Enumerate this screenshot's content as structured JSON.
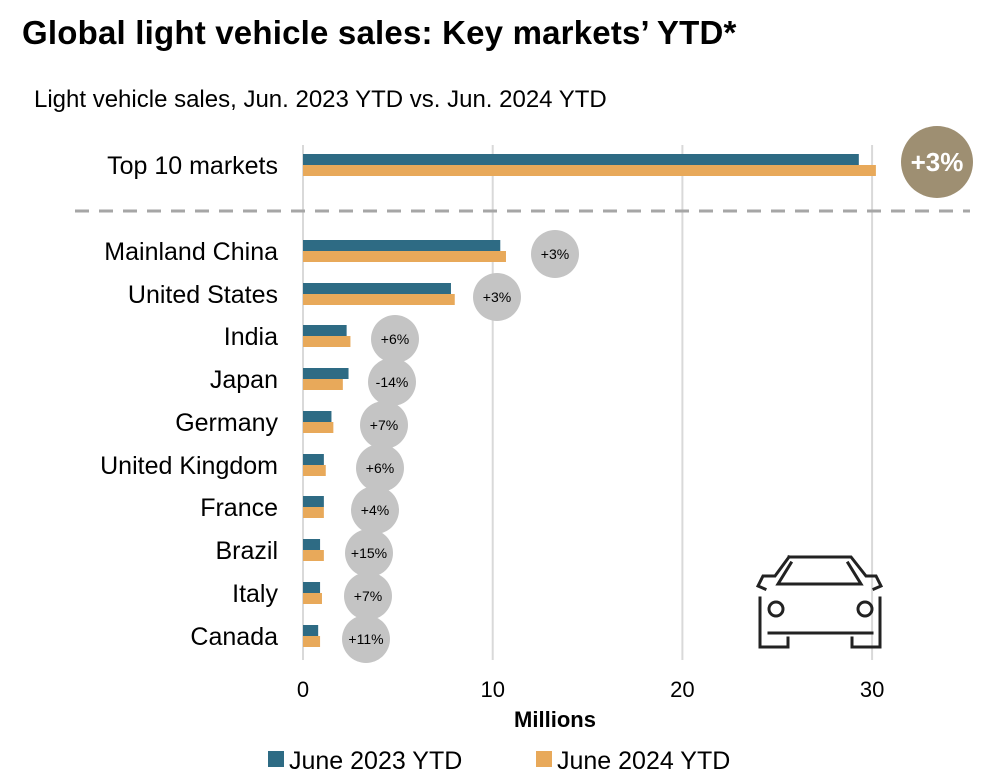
{
  "title": "Global light vehicle sales: Key markets’ YTD*",
  "subtitle": "Light vehicle sales, Jun. 2023 YTD vs. Jun. 2024 YTD",
  "colors": {
    "series_2023": "#2e6b84",
    "series_2024": "#e8a95a",
    "highlight_bubble": "#9e8f72",
    "bubble": "#c4c4c4",
    "gridline": "#d9d9d9",
    "separator": "#a6a6a6"
  },
  "icons": {
    "car": "car-icon"
  },
  "chart_data": {
    "type": "bar",
    "orientation": "horizontal",
    "title": "Global light vehicle sales: Key markets’ YTD*",
    "subtitle": "Light vehicle sales, Jun. 2023 YTD vs. Jun. 2024 YTD",
    "xlabel": "Millions",
    "ylabel": "",
    "xlim": [
      0,
      35
    ],
    "xticks": [
      0,
      10,
      20,
      30
    ],
    "grid": true,
    "legend_position": "bottom",
    "categories": [
      "Top 10 markets",
      "Mainland China",
      "United States",
      "India",
      "Japan",
      "Germany",
      "United Kingdom",
      "France",
      "Brazil",
      "Italy",
      "Canada"
    ],
    "series": [
      {
        "name": "June 2023 YTD",
        "values": [
          29.3,
          10.4,
          7.8,
          2.3,
          2.4,
          1.5,
          1.1,
          1.1,
          0.9,
          0.9,
          0.8
        ]
      },
      {
        "name": "June 2024 YTD",
        "values": [
          30.2,
          10.7,
          8.0,
          2.5,
          2.1,
          1.6,
          1.2,
          1.1,
          1.1,
          1.0,
          0.9
        ]
      }
    ],
    "annotations": [
      "+3%",
      "+3%",
      "+3%",
      "+6%",
      "-14%",
      "+7%",
      "+6%",
      "+4%",
      "+15%",
      "+7%",
      "+11%"
    ],
    "separator_after_category": "Top 10 markets"
  }
}
